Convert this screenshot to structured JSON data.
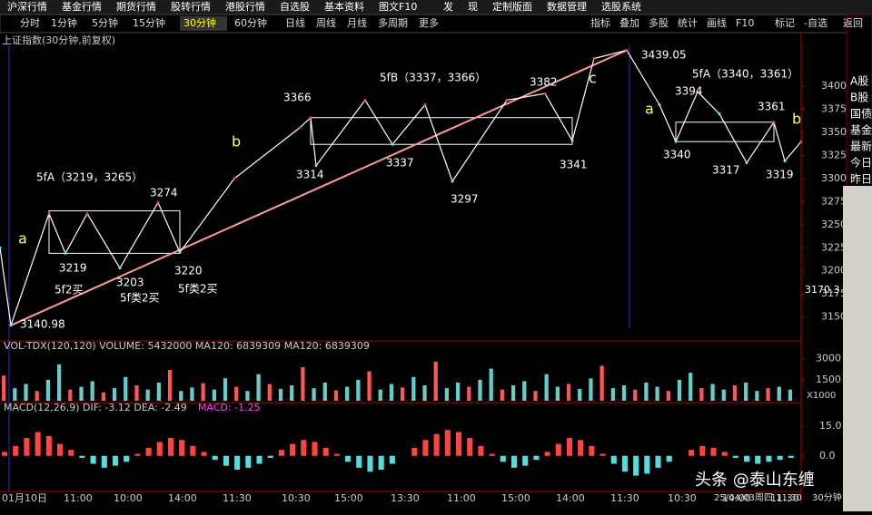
{
  "menu": [
    "沪深行情",
    "基金行情",
    "期货行情",
    "股转行情",
    "港股行情",
    "自选股",
    "基本资料",
    "图文F10",
    "发",
    "现",
    "定制版面",
    "数据管理",
    "选股系统"
  ],
  "periods": [
    "分时",
    "1分钟",
    "5分钟",
    "15分钟",
    "30分钟",
    "60分钟",
    "日线",
    "周线",
    "月线",
    "多周期",
    "更多"
  ],
  "active_period": "30分钟",
  "tools": [
    "指标",
    "叠加",
    "多股",
    "统计",
    "画线",
    "F10",
    "标记",
    "-自选",
    "返回"
  ],
  "chart_data": {
    "type": "line",
    "title": "上证指数(30分钟,前复权)",
    "x": [
      0,
      2,
      9,
      12,
      16,
      22,
      29,
      33,
      43,
      55,
      57,
      58,
      67,
      72,
      78,
      83,
      93,
      100,
      105,
      109,
      115,
      121,
      124,
      128,
      132,
      137,
      142,
      144,
      147
    ],
    "values": [
      3225,
      3141,
      3262,
      3219,
      3262,
      3203,
      3274,
      3220,
      3300,
      3355,
      3366,
      3314,
      3385,
      3337,
      3380,
      3297,
      3385,
      3392,
      3341,
      3430,
      3439,
      3380,
      3340,
      3394,
      3370,
      3317,
      3361,
      3319,
      3340
    ],
    "xlim": [
      0,
      147
    ],
    "ylim": [
      3130,
      3460
    ],
    "yticks": [
      3150,
      3175,
      3200,
      3225,
      3250,
      3275,
      3300,
      3325,
      3350,
      3375,
      3400
    ],
    "current_label": "3170.3",
    "boxes": [
      {
        "low": 3219,
        "high": 3265,
        "from": 9,
        "to": 33
      },
      {
        "low": 3337,
        "high": 3366,
        "from": 57,
        "to": 105
      },
      {
        "low": 3340,
        "high": 3361,
        "from": 124,
        "to": 142
      }
    ],
    "annotations": [
      "5fA（3219，3265）",
      "3274",
      "a",
      "3219",
      "3203",
      "3220",
      "5f2买",
      "5f类2买",
      "5f类2买",
      "3140.98",
      "b",
      "3366",
      "3314",
      "5fB（3337，3366）",
      "3337",
      "3297",
      "3382",
      "c",
      "3341",
      "3439.05",
      "5fA（3340，3361）",
      "3394",
      "a",
      "3340",
      "3317",
      "3361",
      "b",
      "3319"
    ]
  },
  "volume": {
    "legend": "VOL-TDX(120,120) VOLUME: 5432000 MA120: 6839309 MA120: 6839309",
    "ylim": [
      0,
      3500
    ],
    "yticks": [
      1500,
      3000
    ],
    "unit": "X1000",
    "values": [
      1800,
      900,
      1200,
      700,
      1500,
      2600,
      800,
      1000,
      1400,
      600,
      900,
      1700,
      1100,
      800,
      1300,
      2200,
      700,
      950,
      1250,
      800,
      1600,
      1000,
      700,
      1900,
      1200,
      850,
      1100,
      2400,
      900,
      1300,
      750,
      1000,
      1500,
      2100,
      800,
      1200,
      950,
      1700,
      1100,
      2800,
      900,
      1300,
      1000,
      1500,
      2300,
      800,
      1100,
      1400,
      700,
      1900,
      1000,
      1200,
      850,
      1600,
      2500,
      900,
      1100,
      800,
      1300,
      1000,
      700,
      1500,
      2000,
      900,
      1200,
      800,
      1100,
      1300,
      700,
      900,
      1000,
      800
    ]
  },
  "macd": {
    "legend": "MACD(12,26,9) DIF: -3.12 DEA: -2.49",
    "macd_text": "MACD: -1.25",
    "ylim": [
      -12,
      20
    ],
    "yticks": [
      {
        "value": 0,
        "label": "0.0"
      },
      {
        "value": 15,
        "label": "15.0"
      }
    ],
    "values": [
      2,
      5,
      9,
      12,
      10,
      6,
      3,
      -1,
      -4,
      -6,
      -5,
      -3,
      1,
      4,
      7,
      9,
      8,
      5,
      2,
      -2,
      -5,
      -7,
      -6,
      -4,
      -1,
      3,
      6,
      8,
      7,
      4,
      1,
      -3,
      -6,
      -8,
      -7,
      -4,
      0,
      4,
      8,
      11,
      13,
      12,
      9,
      5,
      1,
      -3,
      -6,
      -5,
      -2,
      2,
      6,
      9,
      8,
      5,
      1,
      -4,
      -8,
      -10,
      -9,
      -6,
      -3,
      0,
      3,
      5,
      4,
      2,
      -1,
      -3,
      -4,
      -3,
      -2,
      -1
    ]
  },
  "time_labels": [
    "01月10日",
    "11:00",
    "10:00",
    "14:00",
    "11:30",
    "10:30",
    "15:00",
    "13:30",
    "11:00",
    "15:00",
    "14:00",
    "11:30",
    "10:30",
    "14:00",
    "11:30"
  ],
  "status_time": "25/04/03周四 11:30",
  "status_period": "30分钟",
  "side": [
    "A股",
    "B股",
    "国债",
    "基金",
    "最新",
    "今日",
    "昨日"
  ],
  "watermark": "头条 @泰山东缠"
}
